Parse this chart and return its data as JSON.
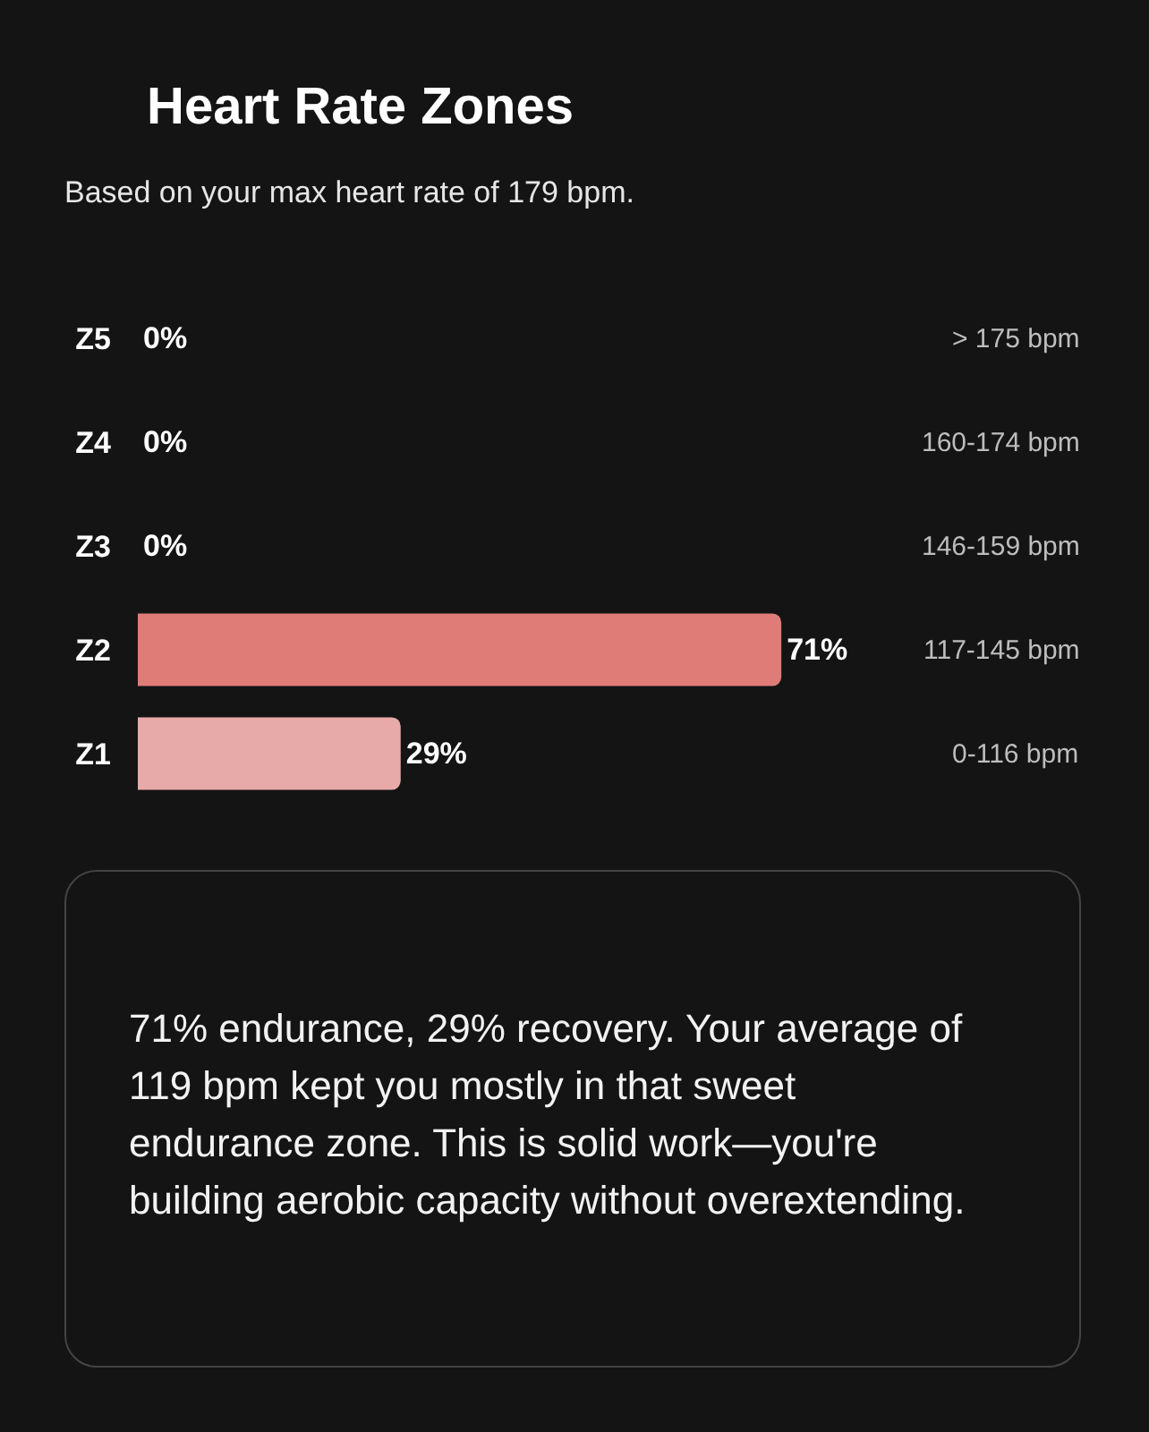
{
  "chart_data": {
    "type": "bar",
    "orientation": "horizontal",
    "title": "Heart Rate Zones",
    "subtitle": "Based on your max heart rate of 179 bpm.",
    "categories": [
      "Z5",
      "Z4",
      "Z3",
      "Z2",
      "Z1"
    ],
    "values": [
      0,
      0,
      0,
      71,
      29
    ],
    "colors": [
      "#b52a25",
      "#d23c36",
      "#d9514d",
      "#e07c78",
      "#e8aaa8"
    ],
    "value_labels": [
      "0%",
      "0%",
      "0%",
      "71%",
      "29%"
    ],
    "tick_labels": "y",
    "annotations": [
      "> 175 bpm",
      "160-174 bpm",
      "146-159 bpm",
      "117-145 bpm",
      "0-116 bpm",
      "71% endurance, 29% recovery. Your average of 119 bpm kept you mostly in that sweet endurance zone. This is solid work—you're building aerobic capacity without overextending."
    ]
  }
}
